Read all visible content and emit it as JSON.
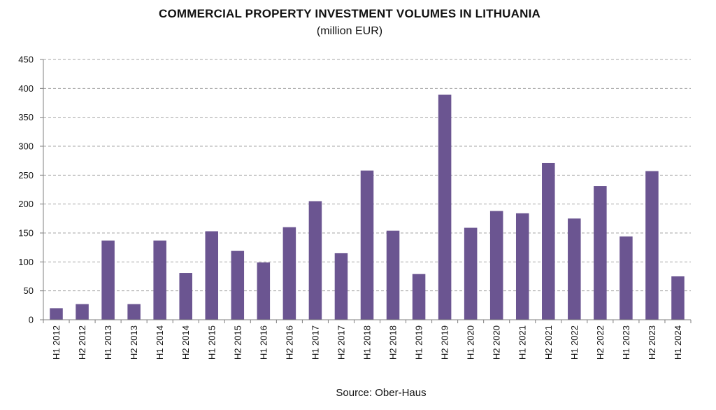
{
  "chart_data": {
    "type": "bar",
    "title": "COMMERCIAL PROPERTY INVESTMENT VOLUMES IN LITHUANIA",
    "subtitle": "(million EUR)",
    "source": "Source: Ober-Haus",
    "xlabel": "",
    "ylabel": "",
    "ylim": [
      0,
      450
    ],
    "yticks": [
      0,
      50,
      100,
      150,
      200,
      250,
      300,
      350,
      400,
      450
    ],
    "grid": true,
    "legend": "none",
    "bar_color": "#6b5591",
    "categories": [
      "H1 2012",
      "H2 2012",
      "H1 2013",
      "H2 2013",
      "H1 2014",
      "H2 2014",
      "H1 2015",
      "H2 2015",
      "H1 2016",
      "H2 2016",
      "H1 2017",
      "H2 2017",
      "H1 2018",
      "H2 2018",
      "H1 2019",
      "H2 2019",
      "H1 2020",
      "H2 2020",
      "H1 2021",
      "H2 2021",
      "H1 2022",
      "H2 2022",
      "H1 2023",
      "H2 2023",
      "H1 2024"
    ],
    "values": [
      20,
      27,
      137,
      27,
      137,
      81,
      153,
      119,
      99,
      160,
      205,
      115,
      258,
      154,
      79,
      389,
      159,
      188,
      184,
      271,
      175,
      231,
      144,
      257,
      75
    ]
  }
}
